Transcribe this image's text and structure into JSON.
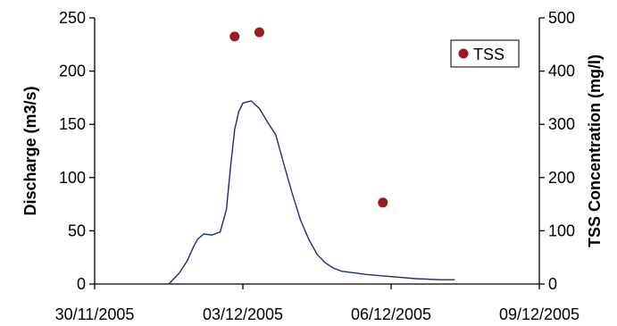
{
  "chart_data": {
    "type": "line",
    "title": "",
    "x_axis": {
      "type": "date",
      "range": [
        "2005-11-30",
        "2005-12-09"
      ],
      "tick_labels": [
        "30/11/2005",
        "03/12/2005",
        "06/12/2005",
        "09/12/2005"
      ],
      "tick_dates": [
        "2005-11-30",
        "2005-12-03",
        "2005-12-06",
        "2005-12-09"
      ]
    },
    "y_axis_left": {
      "label": "Discharge (m3/s)",
      "range": [
        0,
        250
      ],
      "ticks": [
        0,
        50,
        100,
        150,
        200,
        250
      ]
    },
    "y_axis_right": {
      "label": "TSS Concentration (mg/l)",
      "range": [
        0,
        500
      ],
      "ticks": [
        0,
        100,
        200,
        300,
        400,
        500
      ]
    },
    "grid": false,
    "legend": {
      "placement": "top-right",
      "entries": [
        "TSS"
      ]
    },
    "series": [
      {
        "kind": "line",
        "axis": "left",
        "color": "#1f2a80",
        "points": [
          [
            "2005-12-01 12:00",
            0
          ],
          [
            "2005-12-01 17:00",
            10
          ],
          [
            "2005-12-01 21:00",
            22
          ],
          [
            "2005-12-02 00:00",
            35
          ],
          [
            "2005-12-02 02:00",
            42
          ],
          [
            "2005-12-02 05:00",
            47
          ],
          [
            "2005-12-02 09:00",
            46
          ],
          [
            "2005-12-02 13:00",
            49
          ],
          [
            "2005-12-02 16:00",
            70
          ],
          [
            "2005-12-02 18:00",
            110
          ],
          [
            "2005-12-02 20:00",
            145
          ],
          [
            "2005-12-02 22:00",
            162
          ],
          [
            "2005-12-03 00:00",
            170
          ],
          [
            "2005-12-03 04:00",
            172
          ],
          [
            "2005-12-03 08:00",
            165
          ],
          [
            "2005-12-03 12:00",
            152
          ],
          [
            "2005-12-03 16:00",
            140
          ],
          [
            "2005-12-03 20:00",
            112
          ],
          [
            "2005-12-04 00:00",
            85
          ],
          [
            "2005-12-04 04:00",
            60
          ],
          [
            "2005-12-04 08:00",
            42
          ],
          [
            "2005-12-04 12:00",
            28
          ],
          [
            "2005-12-04 16:00",
            20
          ],
          [
            "2005-12-04 20:00",
            15
          ],
          [
            "2005-12-05 00:00",
            12
          ],
          [
            "2005-12-05 12:00",
            9
          ],
          [
            "2005-12-06 00:00",
            7
          ],
          [
            "2005-12-06 12:00",
            5
          ],
          [
            "2005-12-07 00:00",
            4
          ],
          [
            "2005-12-07 07:00",
            4
          ]
        ]
      },
      {
        "kind": "scatter",
        "axis": "right",
        "name": "TSS",
        "color": "#9b1b1b",
        "points": [
          [
            "2005-12-02 20:00",
            465
          ],
          [
            "2005-12-03 08:00",
            473
          ],
          [
            "2005-12-05 20:00",
            153
          ]
        ]
      }
    ]
  }
}
